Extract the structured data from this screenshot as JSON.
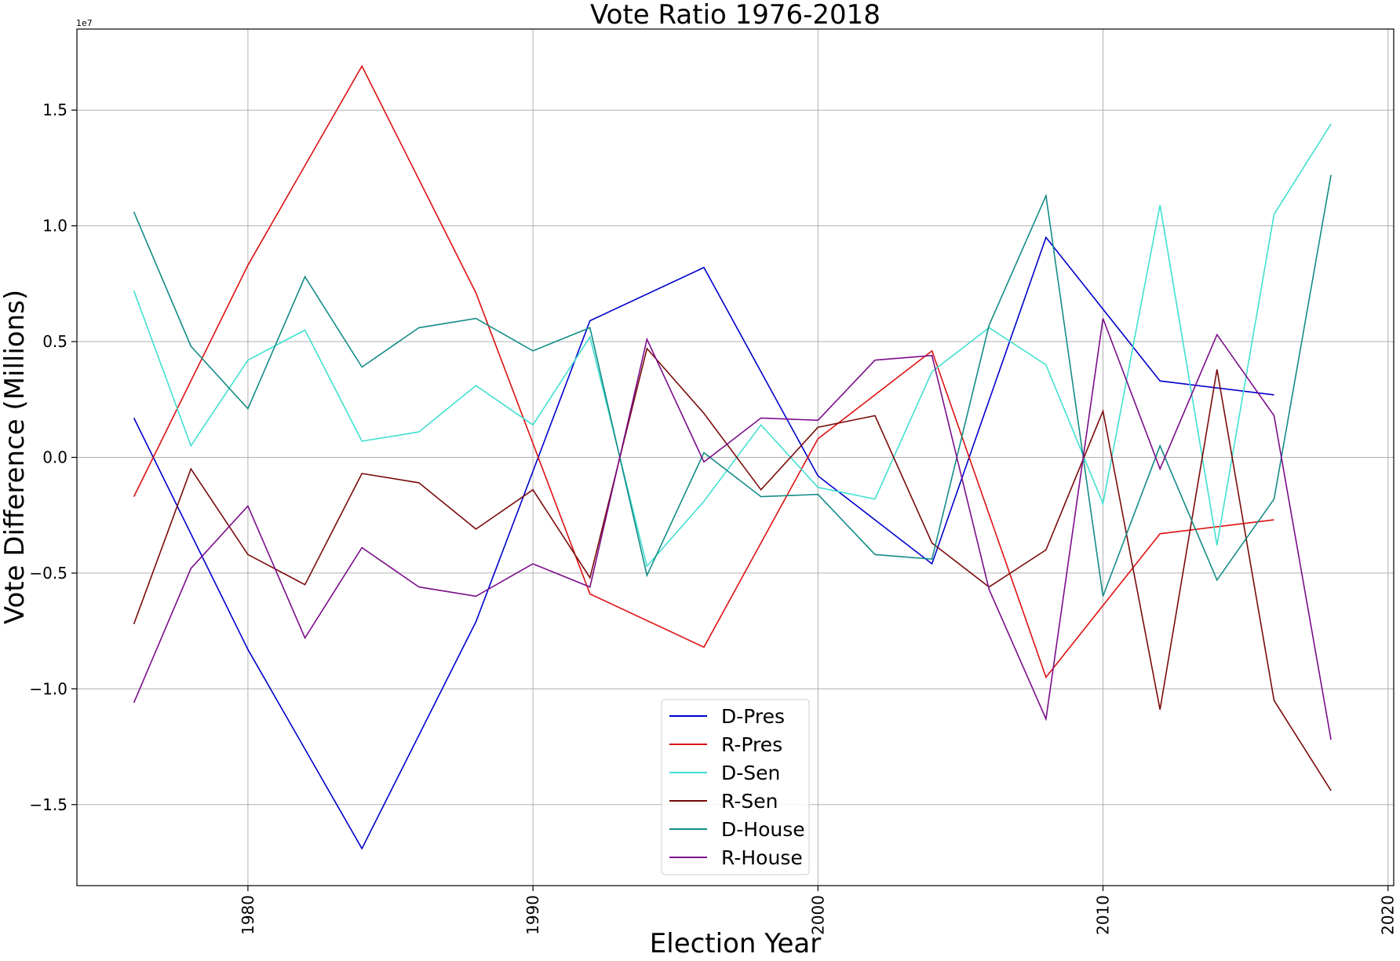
{
  "chart_data": {
    "type": "line",
    "title": "Vote Ratio 1976-2018",
    "xlabel": "Election Year",
    "ylabel": "Vote Difference (Millions)",
    "y_offset_label": "1e7",
    "xlim": [
      1974,
      2020.2
    ],
    "ylim": [
      -18500000,
      18500000
    ],
    "xticks": [
      1980,
      1990,
      2000,
      2010,
      2020
    ],
    "yticks": [
      -15000000,
      -10000000,
      -5000000,
      0,
      5000000,
      10000000,
      15000000
    ],
    "ytick_labels": [
      "−1.5",
      "−1.0",
      "−0.5",
      "0.0",
      "0.5",
      "1.0",
      "1.5"
    ],
    "grid": true,
    "legend_position": "lower-center",
    "series": [
      {
        "name": "D-Pres",
        "color": "#0000cc",
        "x": [
          1976,
          1980,
          1984,
          1988,
          1992,
          1996,
          2000,
          2004,
          2008,
          2012,
          2016
        ],
        "y": [
          1700000,
          -8300000,
          -16900000,
          -7100000,
          5900000,
          8200000,
          -800000,
          -4600000,
          9500000,
          3300000,
          2700000
        ]
      },
      {
        "name": "R-Pres",
        "color": "#dd1111",
        "x": [
          1976,
          1980,
          1984,
          1988,
          1992,
          1996,
          2000,
          2004,
          2008,
          2012,
          2016
        ],
        "y": [
          -1700000,
          8300000,
          16900000,
          7100000,
          -5900000,
          -8200000,
          800000,
          4600000,
          -9500000,
          -3300000,
          -2700000
        ]
      },
      {
        "name": "D-Sen",
        "color": "#40e0d0",
        "x": [
          1976,
          1978,
          1980,
          1982,
          1984,
          1986,
          1988,
          1990,
          1992,
          1994,
          1996,
          1998,
          2000,
          2002,
          2004,
          2006,
          2008,
          2010,
          2012,
          2014,
          2016,
          2018
        ],
        "y": [
          7200000,
          500000,
          4200000,
          5500000,
          700000,
          1100000,
          3100000,
          1400000,
          5200000,
          -4700000,
          -1900000,
          1400000,
          -1300000,
          -1800000,
          3700000,
          5600000,
          4000000,
          -2000000,
          10900000,
          -3800000,
          10500000,
          14400000
        ]
      },
      {
        "name": "R-Sen",
        "color": "#7a0a0a",
        "x": [
          1976,
          1978,
          1980,
          1982,
          1984,
          1986,
          1988,
          1990,
          1992,
          1994,
          1996,
          1998,
          2000,
          2002,
          2004,
          2006,
          2008,
          2010,
          2012,
          2014,
          2016,
          2018
        ],
        "y": [
          -7200000,
          -500000,
          -4200000,
          -5500000,
          -700000,
          -1100000,
          -3100000,
          -1400000,
          -5200000,
          4700000,
          1900000,
          -1400000,
          1300000,
          1800000,
          -3700000,
          -5600000,
          -4000000,
          2000000,
          -10900000,
          3800000,
          -10500000,
          -14400000
        ]
      },
      {
        "name": "D-House",
        "color": "#138c87",
        "x": [
          1976,
          1978,
          1980,
          1982,
          1984,
          1986,
          1988,
          1990,
          1992,
          1994,
          1996,
          1998,
          2000,
          2002,
          2004,
          2006,
          2008,
          2010,
          2012,
          2014,
          2016,
          2018
        ],
        "y": [
          10600000,
          4800000,
          2100000,
          7800000,
          3900000,
          5600000,
          6000000,
          4600000,
          5600000,
          -5100000,
          200000,
          -1700000,
          -1600000,
          -4200000,
          -4400000,
          5700000,
          11300000,
          -6000000,
          500000,
          -5300000,
          -1800000,
          12200000
        ]
      },
      {
        "name": "R-House",
        "color": "#7b0d8a",
        "x": [
          1976,
          1978,
          1980,
          1982,
          1984,
          1986,
          1988,
          1990,
          1992,
          1994,
          1996,
          1998,
          2000,
          2002,
          2004,
          2006,
          2008,
          2010,
          2012,
          2014,
          2016,
          2018
        ],
        "y": [
          -10600000,
          -4800000,
          -2100000,
          -7800000,
          -3900000,
          -5600000,
          -6000000,
          -4600000,
          -5600000,
          5100000,
          -200000,
          1700000,
          1600000,
          4200000,
          4400000,
          -5700000,
          -11300000,
          6000000,
          -500000,
          5300000,
          1800000,
          -12200000
        ]
      }
    ]
  }
}
